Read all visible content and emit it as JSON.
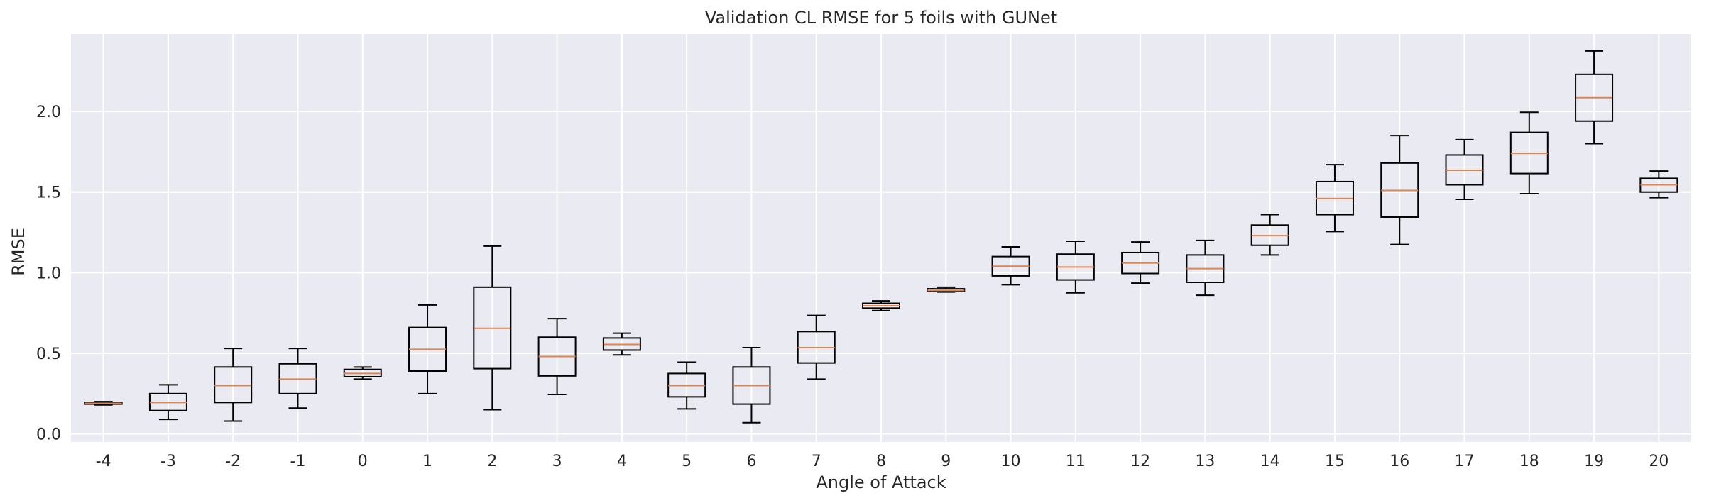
{
  "chart_data": {
    "type": "boxplot",
    "title": "Validation CL RMSE for 5 foils with GUNet",
    "xlabel": "Angle of Attack",
    "ylabel": "RMSE",
    "ylim": [
      -0.05,
      2.48
    ],
    "yticks": [
      0.0,
      0.5,
      1.0,
      1.5,
      2.0
    ],
    "ytick_labels": [
      "0.0",
      "0.5",
      "1.0",
      "1.5",
      "2.0"
    ],
    "grid": true,
    "colors": {
      "background": "#eaeaf2",
      "grid": "#ffffff",
      "box": "#000000",
      "median": "#dd8452",
      "text": "#262626"
    },
    "categories": [
      "-4",
      "-3",
      "-2",
      "-1",
      "0",
      "1",
      "2",
      "3",
      "4",
      "5",
      "6",
      "7",
      "8",
      "9",
      "10",
      "11",
      "12",
      "13",
      "14",
      "15",
      "16",
      "17",
      "18",
      "19",
      "20"
    ],
    "boxes": [
      {
        "whislo": 0.18,
        "q1": 0.185,
        "med": 0.19,
        "q3": 0.195,
        "whishi": 0.2
      },
      {
        "whislo": 0.09,
        "q1": 0.145,
        "med": 0.195,
        "q3": 0.25,
        "whishi": 0.305
      },
      {
        "whislo": 0.08,
        "q1": 0.195,
        "med": 0.3,
        "q3": 0.415,
        "whishi": 0.53
      },
      {
        "whislo": 0.16,
        "q1": 0.25,
        "med": 0.34,
        "q3": 0.435,
        "whishi": 0.53
      },
      {
        "whislo": 0.34,
        "q1": 0.355,
        "med": 0.375,
        "q3": 0.4,
        "whishi": 0.415
      },
      {
        "whislo": 0.25,
        "q1": 0.39,
        "med": 0.525,
        "q3": 0.66,
        "whishi": 0.8
      },
      {
        "whislo": 0.15,
        "q1": 0.405,
        "med": 0.655,
        "q3": 0.91,
        "whishi": 1.165
      },
      {
        "whislo": 0.245,
        "q1": 0.36,
        "med": 0.48,
        "q3": 0.6,
        "whishi": 0.715
      },
      {
        "whislo": 0.49,
        "q1": 0.52,
        "med": 0.555,
        "q3": 0.595,
        "whishi": 0.625
      },
      {
        "whislo": 0.155,
        "q1": 0.23,
        "med": 0.3,
        "q3": 0.375,
        "whishi": 0.445
      },
      {
        "whislo": 0.07,
        "q1": 0.185,
        "med": 0.3,
        "q3": 0.415,
        "whishi": 0.535
      },
      {
        "whislo": 0.34,
        "q1": 0.44,
        "med": 0.535,
        "q3": 0.635,
        "whishi": 0.735
      },
      {
        "whislo": 0.765,
        "q1": 0.78,
        "med": 0.795,
        "q3": 0.81,
        "whishi": 0.825
      },
      {
        "whislo": 0.88,
        "q1": 0.885,
        "med": 0.89,
        "q3": 0.9,
        "whishi": 0.91
      },
      {
        "whislo": 0.925,
        "q1": 0.98,
        "med": 1.04,
        "q3": 1.1,
        "whishi": 1.16
      },
      {
        "whislo": 0.875,
        "q1": 0.955,
        "med": 1.035,
        "q3": 1.115,
        "whishi": 1.195
      },
      {
        "whislo": 0.935,
        "q1": 0.995,
        "med": 1.06,
        "q3": 1.125,
        "whishi": 1.19
      },
      {
        "whislo": 0.86,
        "q1": 0.94,
        "med": 1.025,
        "q3": 1.11,
        "whishi": 1.2
      },
      {
        "whislo": 1.11,
        "q1": 1.17,
        "med": 1.23,
        "q3": 1.295,
        "whishi": 1.36
      },
      {
        "whislo": 1.255,
        "q1": 1.36,
        "med": 1.46,
        "q3": 1.565,
        "whishi": 1.67
      },
      {
        "whislo": 1.175,
        "q1": 1.345,
        "med": 1.51,
        "q3": 1.68,
        "whishi": 1.85
      },
      {
        "whislo": 1.455,
        "q1": 1.545,
        "med": 1.635,
        "q3": 1.73,
        "whishi": 1.825
      },
      {
        "whislo": 1.49,
        "q1": 1.615,
        "med": 1.74,
        "q3": 1.87,
        "whishi": 1.995
      },
      {
        "whislo": 1.8,
        "q1": 1.94,
        "med": 2.085,
        "q3": 2.23,
        "whishi": 2.375
      },
      {
        "whislo": 1.465,
        "q1": 1.5,
        "med": 1.545,
        "q3": 1.585,
        "whishi": 1.63
      }
    ]
  }
}
